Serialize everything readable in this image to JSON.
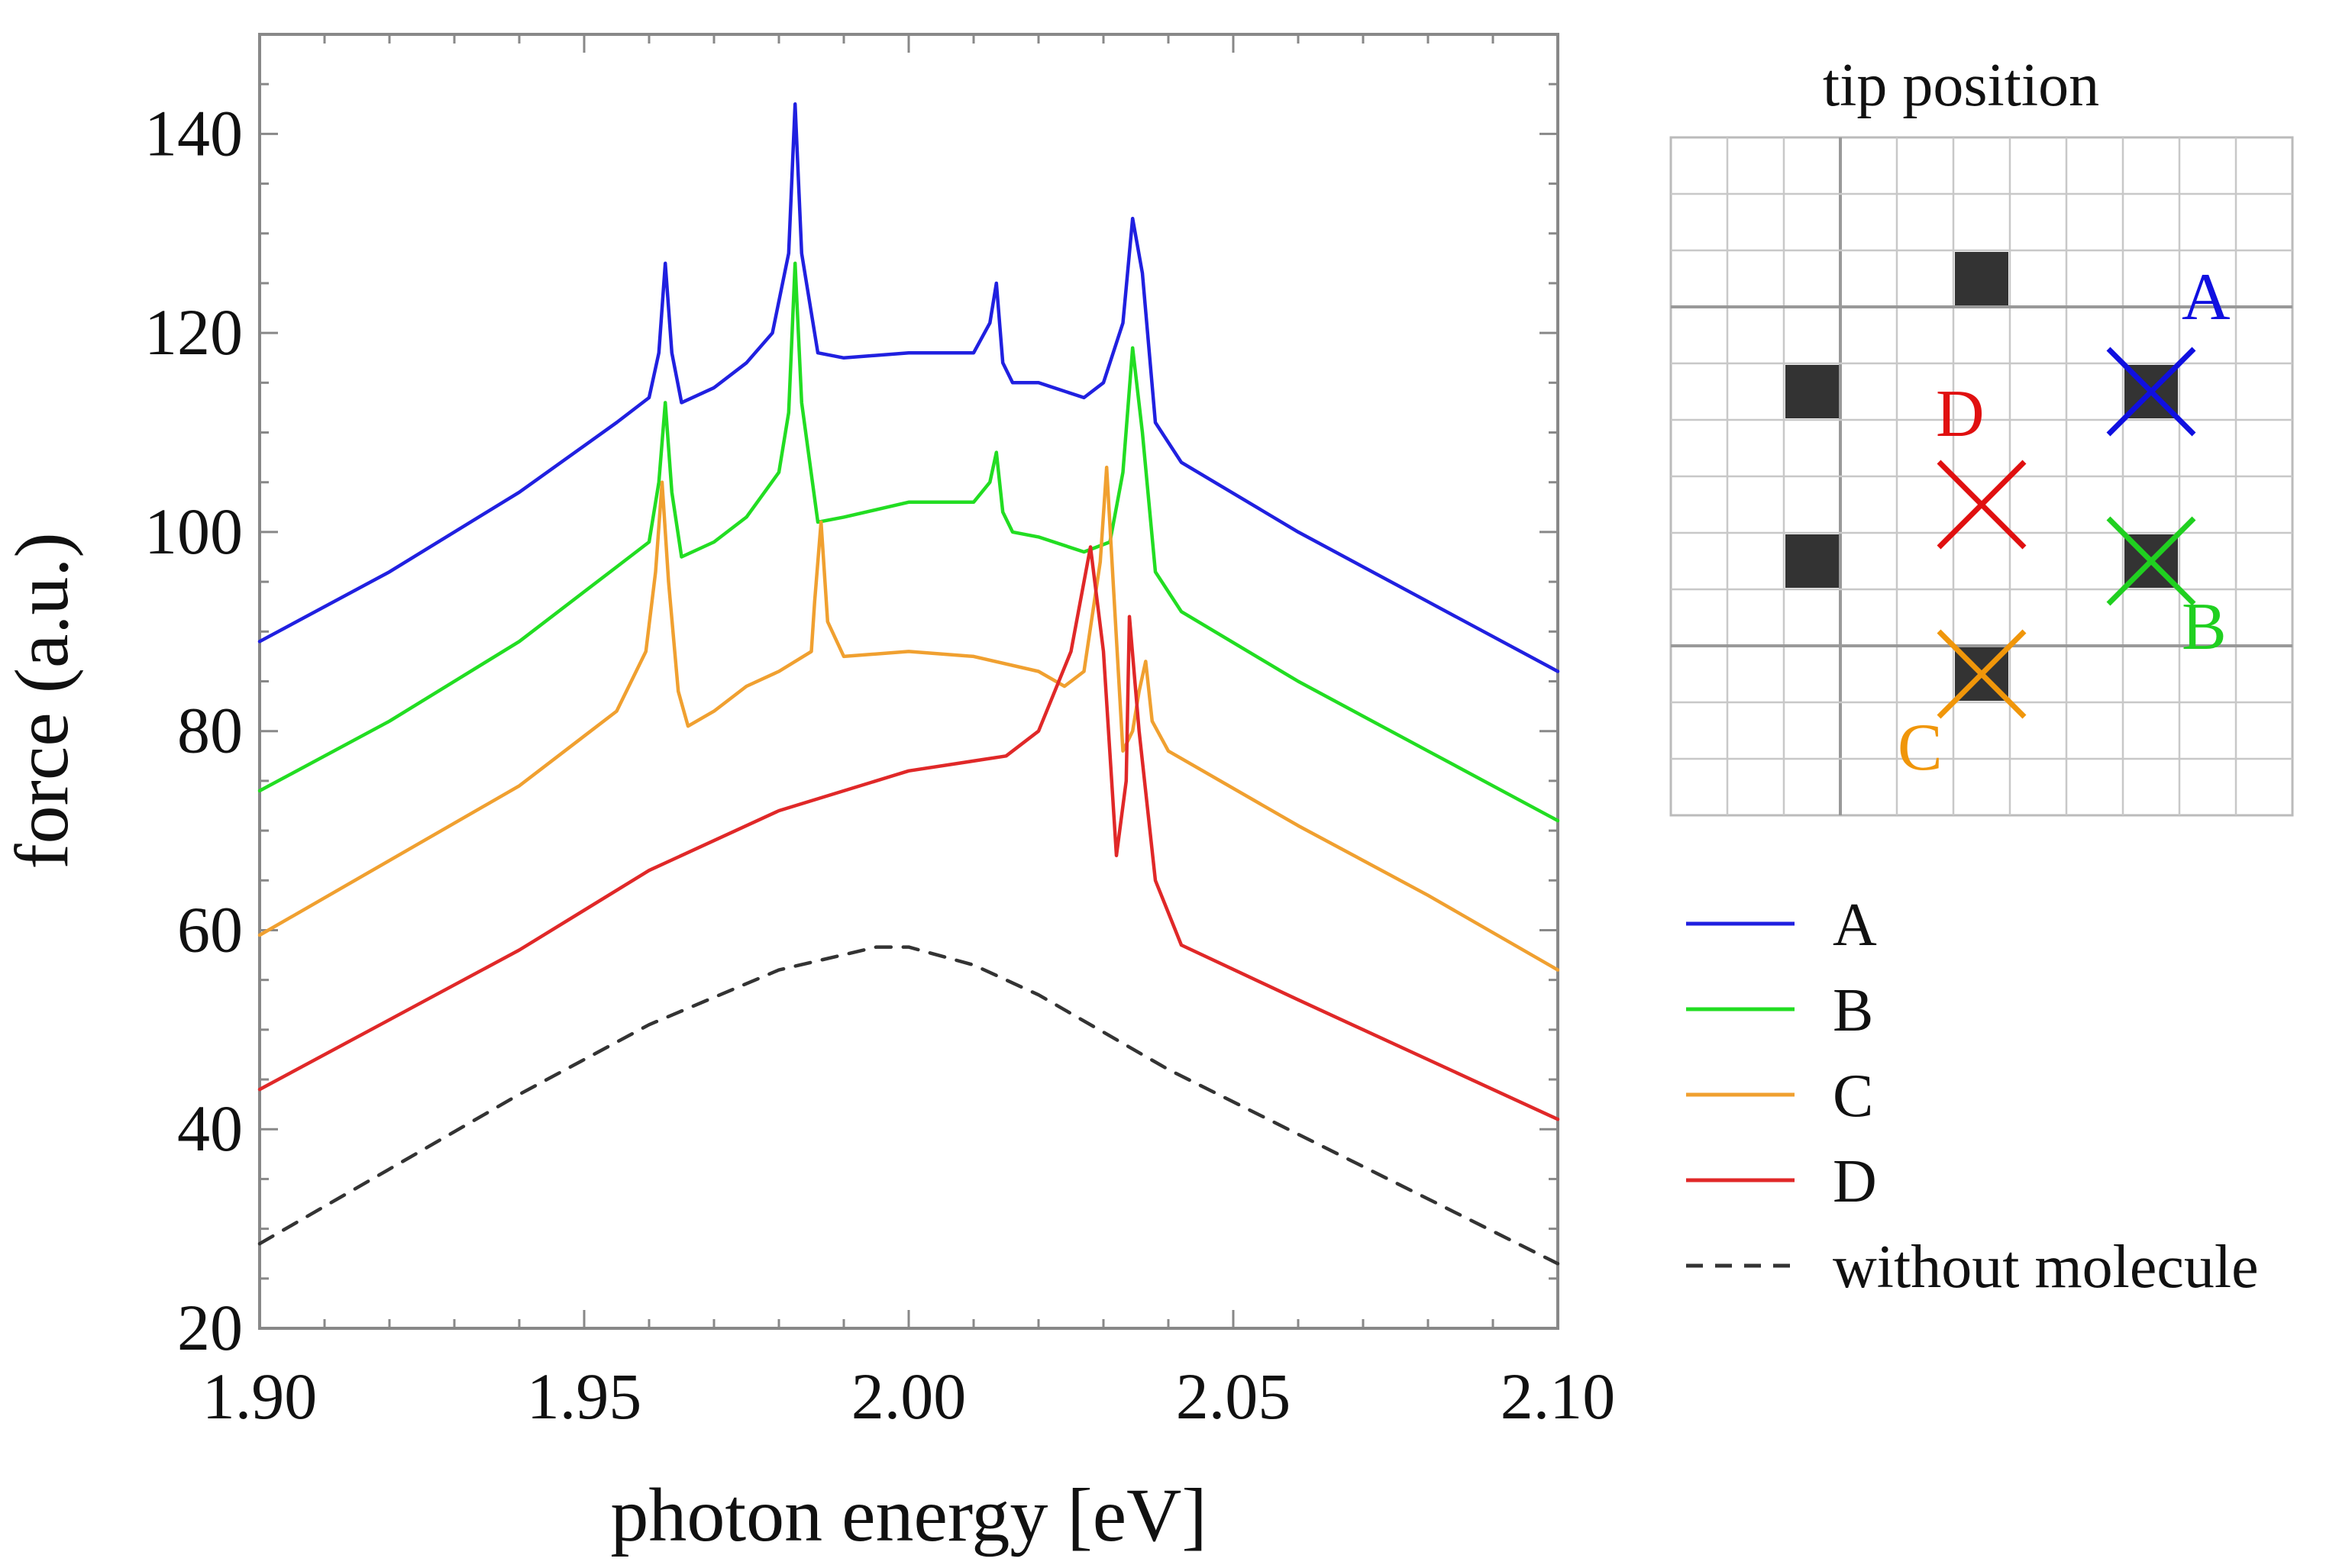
{
  "chart_data": {
    "type": "line",
    "xlabel": "photon energy [eV]",
    "ylabel": "force (a.u.)",
    "xlim": [
      1.9,
      2.1
    ],
    "ylim": [
      20,
      150
    ],
    "x_ticks": [
      1.9,
      1.95,
      2.0,
      2.05,
      2.1
    ],
    "x_tick_labels": [
      "1.90",
      "1.95",
      "2.00",
      "2.05",
      "2.10"
    ],
    "y_ticks": [
      20,
      40,
      60,
      80,
      100,
      120,
      140
    ],
    "y_tick_labels": [
      "20",
      "40",
      "60",
      "80",
      "100",
      "120",
      "140"
    ],
    "series": [
      {
        "name": "A",
        "color": "#2020e0",
        "style": "solid",
        "points": [
          [
            1.9,
            89
          ],
          [
            1.92,
            96
          ],
          [
            1.94,
            104
          ],
          [
            1.955,
            111
          ],
          [
            1.96,
            113.5
          ],
          [
            1.9615,
            118
          ],
          [
            1.9625,
            127
          ],
          [
            1.9635,
            118
          ],
          [
            1.965,
            113
          ],
          [
            1.97,
            114.5
          ],
          [
            1.975,
            117
          ],
          [
            1.979,
            120
          ],
          [
            1.9815,
            128
          ],
          [
            1.9825,
            143
          ],
          [
            1.9835,
            128
          ],
          [
            1.986,
            118
          ],
          [
            1.99,
            117.5
          ],
          [
            2.0,
            118
          ],
          [
            2.01,
            118
          ],
          [
            2.0125,
            121
          ],
          [
            2.0135,
            125
          ],
          [
            2.0145,
            117
          ],
          [
            2.016,
            115
          ],
          [
            2.02,
            115
          ],
          [
            2.027,
            113.5
          ],
          [
            2.03,
            115
          ],
          [
            2.033,
            121
          ],
          [
            2.0345,
            131.5
          ],
          [
            2.036,
            126
          ],
          [
            2.038,
            111
          ],
          [
            2.042,
            107
          ],
          [
            2.06,
            100
          ],
          [
            2.08,
            93
          ],
          [
            2.1,
            86
          ]
        ]
      },
      {
        "name": "B",
        "color": "#22dd22",
        "style": "solid",
        "points": [
          [
            1.9,
            74
          ],
          [
            1.92,
            81
          ],
          [
            1.94,
            89
          ],
          [
            1.955,
            96.5
          ],
          [
            1.96,
            99
          ],
          [
            1.9615,
            105
          ],
          [
            1.9625,
            113
          ],
          [
            1.9635,
            104
          ],
          [
            1.965,
            97.5
          ],
          [
            1.97,
            99
          ],
          [
            1.975,
            101.5
          ],
          [
            1.98,
            106
          ],
          [
            1.9815,
            112
          ],
          [
            1.9825,
            127
          ],
          [
            1.9835,
            113
          ],
          [
            1.986,
            101
          ],
          [
            1.99,
            101.5
          ],
          [
            2.0,
            103
          ],
          [
            2.01,
            103
          ],
          [
            2.0125,
            105
          ],
          [
            2.0135,
            108
          ],
          [
            2.0145,
            102
          ],
          [
            2.016,
            100
          ],
          [
            2.02,
            99.5
          ],
          [
            2.027,
            98
          ],
          [
            2.031,
            99
          ],
          [
            2.033,
            106
          ],
          [
            2.0345,
            118.5
          ],
          [
            2.036,
            110
          ],
          [
            2.038,
            96
          ],
          [
            2.042,
            92
          ],
          [
            2.06,
            85
          ],
          [
            2.08,
            78
          ],
          [
            2.1,
            71
          ]
        ]
      },
      {
        "name": "C",
        "color": "#f0a030",
        "style": "solid",
        "points": [
          [
            1.9,
            59.5
          ],
          [
            1.92,
            67
          ],
          [
            1.94,
            74.5
          ],
          [
            1.955,
            82
          ],
          [
            1.9595,
            88
          ],
          [
            1.961,
            96
          ],
          [
            1.962,
            105
          ],
          [
            1.963,
            95
          ],
          [
            1.9645,
            84
          ],
          [
            1.966,
            80.5
          ],
          [
            1.97,
            82
          ],
          [
            1.975,
            84.5
          ],
          [
            1.98,
            86
          ],
          [
            1.985,
            88
          ],
          [
            1.9855,
            93
          ],
          [
            1.9865,
            101
          ],
          [
            1.9875,
            91
          ],
          [
            1.99,
            87.5
          ],
          [
            2.0,
            88
          ],
          [
            2.01,
            87.5
          ],
          [
            2.02,
            86
          ],
          [
            2.024,
            84.5
          ],
          [
            2.027,
            86
          ],
          [
            2.0295,
            97
          ],
          [
            2.0305,
            106.5
          ],
          [
            2.0315,
            95
          ],
          [
            2.033,
            78
          ],
          [
            2.0345,
            80
          ],
          [
            2.0355,
            84
          ],
          [
            2.0365,
            87
          ],
          [
            2.0375,
            81
          ],
          [
            2.04,
            78
          ],
          [
            2.06,
            70.5
          ],
          [
            2.08,
            63.5
          ],
          [
            2.1,
            56
          ]
        ]
      },
      {
        "name": "D",
        "color": "#e02828",
        "style": "solid",
        "points": [
          [
            1.9,
            44
          ],
          [
            1.92,
            51
          ],
          [
            1.94,
            58
          ],
          [
            1.96,
            66
          ],
          [
            1.98,
            72
          ],
          [
            2.0,
            76
          ],
          [
            2.015,
            77.5
          ],
          [
            2.02,
            80
          ],
          [
            2.025,
            88
          ],
          [
            2.028,
            98.5
          ],
          [
            2.03,
            88
          ],
          [
            2.032,
            67.5
          ],
          [
            2.0335,
            75
          ],
          [
            2.034,
            91.5
          ],
          [
            2.0355,
            80
          ],
          [
            2.038,
            65
          ],
          [
            2.042,
            58.5
          ],
          [
            2.06,
            53
          ],
          [
            2.08,
            47
          ],
          [
            2.1,
            41
          ]
        ]
      },
      {
        "name": "without molecule",
        "color": "#333333",
        "style": "dashed",
        "points": [
          [
            1.9,
            28.5
          ],
          [
            1.92,
            36
          ],
          [
            1.94,
            43.5
          ],
          [
            1.96,
            50.5
          ],
          [
            1.98,
            56
          ],
          [
            1.995,
            58.3
          ],
          [
            2.0,
            58.3
          ],
          [
            2.01,
            56.5
          ],
          [
            2.02,
            53.5
          ],
          [
            2.04,
            46
          ],
          [
            2.06,
            39.5
          ],
          [
            2.08,
            33
          ],
          [
            2.1,
            26.5
          ]
        ]
      }
    ],
    "legend": {
      "placement": "right",
      "entries": [
        {
          "label": "A",
          "color": "#2020e0",
          "style": "solid"
        },
        {
          "label": "B",
          "color": "#22dd22",
          "style": "solid"
        },
        {
          "label": "C",
          "color": "#f0a030",
          "style": "solid"
        },
        {
          "label": "D",
          "color": "#e02828",
          "style": "solid"
        },
        {
          "label": "without molecule",
          "color": "#333333",
          "style": "dashed"
        }
      ]
    },
    "inset": {
      "title": "tip position",
      "grid_size": [
        11,
        12
      ],
      "molecule_cells": [
        [
          5,
          2
        ],
        [
          2,
          4
        ],
        [
          8,
          4
        ],
        [
          2,
          7
        ],
        [
          8,
          7
        ],
        [
          5,
          9
        ]
      ],
      "markers": [
        {
          "label": "A",
          "color": "#1010e0",
          "cell": [
            8,
            4
          ]
        },
        {
          "label": "B",
          "color": "#20d020",
          "cell": [
            8,
            7
          ]
        },
        {
          "label": "C",
          "color": "#f0960a",
          "cell": [
            5,
            9
          ]
        },
        {
          "label": "D",
          "color": "#e01010",
          "cell": [
            5,
            6
          ]
        }
      ]
    }
  }
}
